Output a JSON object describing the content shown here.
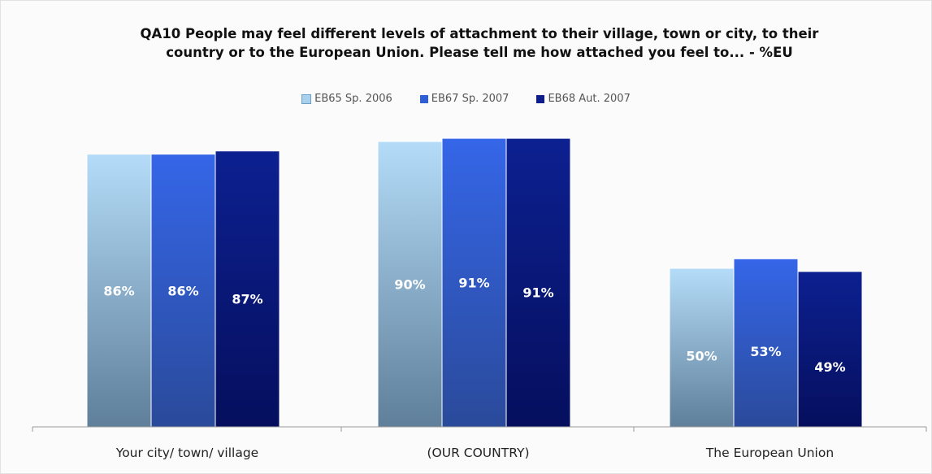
{
  "chart_data": {
    "type": "bar",
    "title": "QA10 People may feel different levels of attachment to their village, town or city, to their country or to the European Union. Please tell me how attached you feel to... - %EU",
    "categories": [
      "Your city/ town/ village",
      "(OUR COUNTRY)",
      "The European Union"
    ],
    "series": [
      {
        "name": "EB65 Sp. 2006",
        "values": [
          86,
          90,
          50
        ],
        "labels": [
          "86%",
          "90%",
          "50%"
        ],
        "color": "#a9d0ec"
      },
      {
        "name": "EB67 Sp. 2007",
        "values": [
          86,
          91,
          53
        ],
        "labels": [
          "86%",
          "91%",
          "53%"
        ],
        "color": "#2f5fd8"
      },
      {
        "name": "EB68 Aut. 2007",
        "values": [
          87,
          91,
          49
        ],
        "labels": [
          "87%",
          "91%",
          "49%"
        ],
        "color": "#0d1e8a"
      }
    ],
    "ylim": [
      0,
      100
    ],
    "legend_position": "top",
    "grid": false,
    "xlabel": "",
    "ylabel": ""
  }
}
